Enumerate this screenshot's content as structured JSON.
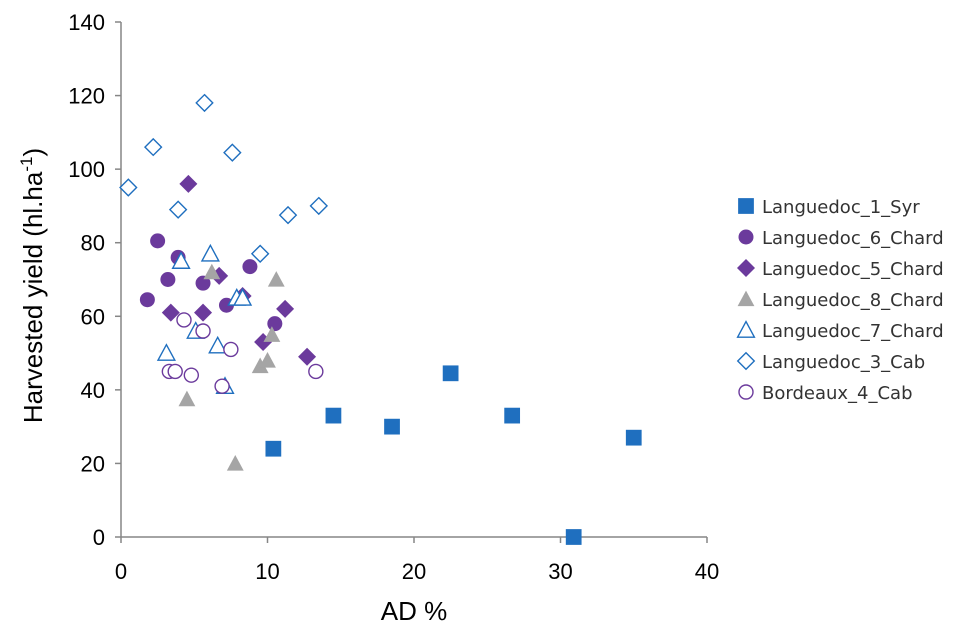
{
  "chart_data": {
    "type": "scatter",
    "title": "",
    "xlabel": "AD %",
    "ylabel_main": "Harvested yield (hl.ha",
    "ylabel_sup": "-1",
    "ylabel_end": ")",
    "xlim": [
      0,
      40
    ],
    "ylim": [
      0,
      140
    ],
    "xticks": [
      0,
      10,
      20,
      30,
      40
    ],
    "yticks": [
      0,
      20,
      40,
      60,
      80,
      100,
      120,
      140
    ],
    "xtick_labels": [
      "0",
      "10",
      "20",
      "30",
      "40"
    ],
    "ytick_labels": [
      "0",
      "20",
      "40",
      "60",
      "80",
      "100",
      "120",
      "140"
    ],
    "grid": false,
    "legend_position": "right",
    "series": [
      {
        "name": "Languedoc_1_Syr",
        "marker": "square",
        "filled": true,
        "color": "#1f6fbf",
        "points": [
          [
            10.4,
            24
          ],
          [
            14.5,
            33
          ],
          [
            18.5,
            30
          ],
          [
            22.5,
            44.5
          ],
          [
            26.7,
            33
          ],
          [
            30.9,
            0
          ],
          [
            35,
            27
          ]
        ]
      },
      {
        "name": "Languedoc_6_Chard",
        "marker": "circle",
        "filled": true,
        "color": "#6b3a9c",
        "points": [
          [
            1.8,
            64.5
          ],
          [
            2.5,
            80.5
          ],
          [
            3.2,
            70
          ],
          [
            3.9,
            76
          ],
          [
            5.6,
            69
          ],
          [
            7.2,
            63
          ],
          [
            8.8,
            73.5
          ],
          [
            10.5,
            58
          ]
        ]
      },
      {
        "name": "Languedoc_5_Chard",
        "marker": "diamond",
        "filled": true,
        "color": "#6b3a9c",
        "points": [
          [
            3.4,
            61
          ],
          [
            4.6,
            96
          ],
          [
            5.6,
            61
          ],
          [
            6.7,
            71
          ],
          [
            8.3,
            65.5
          ],
          [
            9.7,
            53
          ],
          [
            11.2,
            62
          ],
          [
            12.7,
            49
          ]
        ]
      },
      {
        "name": "Languedoc_8_Chard",
        "marker": "triangle",
        "filled": true,
        "color": "#a5a5a5",
        "points": [
          [
            4.5,
            37.5
          ],
          [
            6.2,
            72
          ],
          [
            7.8,
            20
          ],
          [
            9.5,
            46.5
          ],
          [
            10,
            48
          ],
          [
            10.3,
            55
          ],
          [
            10.6,
            70
          ]
        ]
      },
      {
        "name": "Languedoc_7_Chard",
        "marker": "triangle",
        "filled": false,
        "color": "#1f6fbf",
        "points": [
          [
            3.1,
            50
          ],
          [
            4.1,
            75
          ],
          [
            5.1,
            56
          ],
          [
            6.1,
            77
          ],
          [
            6.6,
            52
          ],
          [
            7.1,
            41
          ],
          [
            7.9,
            65
          ],
          [
            8.3,
            65
          ]
        ]
      },
      {
        "name": "Languedoc_3_Cab",
        "marker": "diamond",
        "filled": false,
        "color": "#1f6fbf",
        "points": [
          [
            0.5,
            95
          ],
          [
            2.2,
            106
          ],
          [
            3.9,
            89
          ],
          [
            5.7,
            118
          ],
          [
            7.6,
            104.5
          ],
          [
            9.5,
            77
          ],
          [
            11.4,
            87.5
          ],
          [
            13.5,
            90
          ]
        ]
      },
      {
        "name": "Bordeaux_4_Cab",
        "marker": "circle",
        "filled": false,
        "color": "#6b3a9c",
        "points": [
          [
            3.3,
            45
          ],
          [
            3.7,
            45
          ],
          [
            4.3,
            59
          ],
          [
            4.8,
            44
          ],
          [
            5.6,
            56
          ],
          [
            6.9,
            41
          ],
          [
            7.5,
            51
          ],
          [
            13.3,
            45
          ]
        ]
      }
    ]
  }
}
